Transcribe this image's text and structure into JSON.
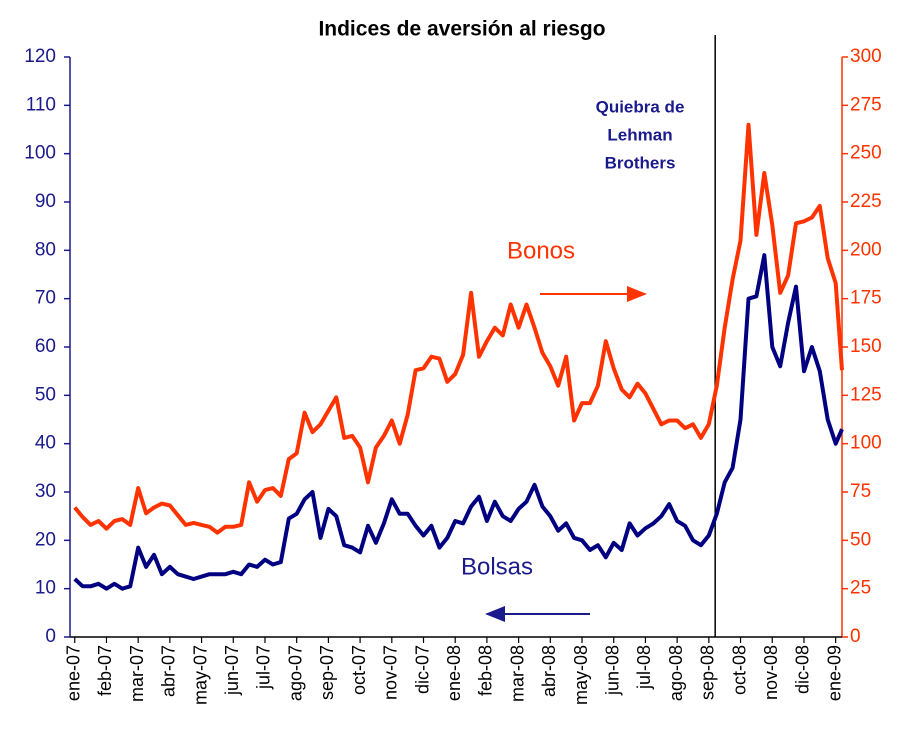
{
  "chart_data": {
    "type": "line",
    "title": "Indices de aversión al riesgo",
    "x": [
      0,
      0.25,
      0.5,
      0.75,
      1,
      1.25,
      1.5,
      1.75,
      2,
      2.25,
      2.5,
      2.75,
      3,
      3.25,
      3.5,
      3.75,
      4,
      4.25,
      4.5,
      4.75,
      5,
      5.25,
      5.5,
      5.75,
      6,
      6.25,
      6.5,
      6.75,
      7,
      7.25,
      7.5,
      7.75,
      8,
      8.25,
      8.5,
      8.75,
      9,
      9.25,
      9.5,
      9.75,
      10,
      10.25,
      10.5,
      10.75,
      11,
      11.25,
      11.5,
      11.75,
      12,
      12.25,
      12.5,
      12.75,
      13,
      13.25,
      13.5,
      13.75,
      14,
      14.25,
      14.5,
      14.75,
      15,
      15.25,
      15.5,
      15.75,
      16,
      16.25,
      16.5,
      16.75,
      17,
      17.25,
      17.5,
      17.75,
      18,
      18.25,
      18.5,
      18.75,
      19,
      19.25,
      19.5,
      19.75,
      20,
      20.25,
      20.5,
      20.75,
      21,
      21.25,
      21.5,
      21.75,
      22,
      22.25,
      22.5,
      22.75,
      23,
      23.25,
      23.5,
      23.75,
      24,
      24.2
    ],
    "series": [
      {
        "name": "Bolsas",
        "color": "#000080",
        "axis": "y",
        "values": [
          12,
          10.5,
          10.5,
          11,
          10,
          11,
          10,
          10.5,
          18.5,
          14.5,
          17,
          13,
          14.5,
          13,
          12.5,
          12,
          12.5,
          13,
          13,
          13,
          13.5,
          13,
          15,
          14.5,
          16,
          15,
          15.5,
          24.5,
          25.5,
          28.5,
          30,
          20.5,
          26.5,
          25,
          19,
          18.5,
          17.5,
          23,
          19.5,
          23.5,
          28.5,
          25.5,
          25.5,
          23,
          21,
          23,
          18.5,
          20.5,
          24,
          23.5,
          27,
          29,
          24,
          28,
          25,
          24,
          26.5,
          28,
          31.5,
          27,
          25,
          22,
          23.5,
          20.5,
          20,
          18,
          19,
          16.5,
          19.5,
          18,
          23.5,
          21,
          22.5,
          23.5,
          25,
          27.5,
          24,
          23,
          20,
          19,
          21,
          25.5,
          32,
          35,
          45,
          70,
          70.5,
          79,
          60,
          56,
          65,
          72.5,
          55,
          60,
          55,
          45,
          40,
          43
        ]
      },
      {
        "name": "Bonos",
        "color": "#ff3300",
        "axis": "y2",
        "values": [
          67,
          62,
          58,
          60,
          56,
          60,
          61,
          58,
          77,
          64,
          67,
          69,
          68,
          63,
          58,
          59,
          58,
          57,
          54,
          57,
          57,
          58,
          80,
          70,
          76,
          77,
          73,
          92,
          95,
          116,
          106,
          110,
          117,
          124,
          103,
          104,
          98,
          80,
          98,
          104,
          112,
          100,
          115,
          138,
          139,
          145,
          144,
          132,
          136,
          146,
          178,
          145,
          153,
          160,
          156,
          172,
          160,
          172,
          160,
          147,
          140,
          130,
          145,
          112,
          121,
          121,
          130,
          153,
          139,
          128,
          124,
          131,
          126,
          118,
          110,
          112,
          112,
          108,
          110,
          103,
          110,
          130,
          160,
          185,
          205,
          265,
          208,
          240,
          213,
          178,
          187,
          214,
          215,
          217,
          223,
          196,
          183,
          138
        ]
      }
    ],
    "xlim": [
      -0.15,
      24.2
    ],
    "xticks": [
      {
        "value": 0,
        "label": "ene-07"
      },
      {
        "value": 1,
        "label": "feb-07"
      },
      {
        "value": 2,
        "label": "mar-07"
      },
      {
        "value": 3,
        "label": "abr-07"
      },
      {
        "value": 4,
        "label": "may-07"
      },
      {
        "value": 5,
        "label": "jun-07"
      },
      {
        "value": 6,
        "label": "jul-07"
      },
      {
        "value": 7,
        "label": "ago-07"
      },
      {
        "value": 8,
        "label": "sep-07"
      },
      {
        "value": 9,
        "label": "oct-07"
      },
      {
        "value": 10,
        "label": "nov-07"
      },
      {
        "value": 11,
        "label": "dic-07"
      },
      {
        "value": 12,
        "label": "ene-08"
      },
      {
        "value": 13,
        "label": "feb-08"
      },
      {
        "value": 14,
        "label": "mar-08"
      },
      {
        "value": 15,
        "label": "abr-08"
      },
      {
        "value": 16,
        "label": "may-08"
      },
      {
        "value": 17,
        "label": "jun-08"
      },
      {
        "value": 18,
        "label": "jul-08"
      },
      {
        "value": 19,
        "label": "ago-08"
      },
      {
        "value": 20,
        "label": "sep-08"
      },
      {
        "value": 21,
        "label": "oct-08"
      },
      {
        "value": 22,
        "label": "nov-08"
      },
      {
        "value": 23,
        "label": "dic-08"
      },
      {
        "value": 24,
        "label": "ene-09"
      }
    ],
    "ylim": [
      0,
      120
    ],
    "yticks": [
      0,
      10,
      20,
      30,
      40,
      50,
      60,
      70,
      80,
      90,
      100,
      110,
      120
    ],
    "y2lim": [
      0,
      300
    ],
    "y2ticks": [
      0,
      25,
      50,
      75,
      100,
      125,
      150,
      175,
      200,
      225,
      250,
      275,
      300
    ],
    "vline_x": 20.2,
    "annotations": {
      "event": [
        "Quiebra de",
        "Lehman",
        "Brothers"
      ]
    }
  }
}
